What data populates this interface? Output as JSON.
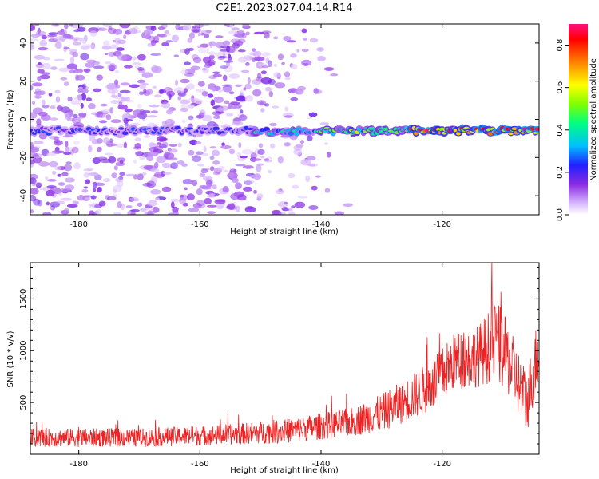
{
  "title": "C2E1.2023.027.04.14.R14",
  "chart_data": [
    {
      "type": "heatmap",
      "xlabel": "Height of straight line (km)",
      "ylabel": "Frequency (Hz)",
      "xlim": [
        -188,
        -104
      ],
      "ylim": [
        -50,
        50
      ],
      "xticks": [
        -180,
        -160,
        -140,
        -120
      ],
      "yticks": [
        -40,
        -20,
        0,
        20,
        40
      ],
      "colorbar": {
        "label": "Normalized spectral amplitude",
        "range": [
          0,
          0.9
        ],
        "ticks": [
          0.0,
          0.2,
          0.4,
          0.6,
          0.8
        ]
      },
      "ridge": {
        "frequency_hz": -6,
        "segments": [
          {
            "x_start": -188,
            "x_end": -151,
            "amplitude": 0.25
          },
          {
            "x_start": -151,
            "x_end": -140,
            "amplitude": 0.4
          },
          {
            "x_start": -140,
            "x_end": -125,
            "amplitude": 0.55
          },
          {
            "x_start": -125,
            "x_end": -104,
            "amplitude": 0.85
          }
        ]
      },
      "noise_region": {
        "x_start": -188,
        "x_end": -135,
        "amplitude": 0.1
      }
    },
    {
      "type": "line",
      "xlabel": "Height of straight line (km)",
      "ylabel": "SNR (10 * v/v)",
      "xlim": [
        -188,
        -104
      ],
      "ylim": [
        0,
        1850
      ],
      "xticks": [
        -180,
        -160,
        -140,
        -120
      ],
      "yticks": [
        500,
        1000,
        1500
      ],
      "color": "#ee2222",
      "envelope": [
        {
          "x": -188,
          "mean": 160,
          "amp": 90
        },
        {
          "x": -170,
          "mean": 160,
          "amp": 90
        },
        {
          "x": -155,
          "mean": 190,
          "amp": 100
        },
        {
          "x": -145,
          "mean": 230,
          "amp": 120
        },
        {
          "x": -135,
          "mean": 310,
          "amp": 140
        },
        {
          "x": -130,
          "mean": 400,
          "amp": 180
        },
        {
          "x": -125,
          "mean": 550,
          "amp": 220
        },
        {
          "x": -121,
          "mean": 700,
          "amp": 260
        },
        {
          "x": -118,
          "mean": 900,
          "amp": 280
        },
        {
          "x": -114,
          "mean": 950,
          "amp": 300
        },
        {
          "x": -111,
          "mean": 1100,
          "amp": 400
        },
        {
          "x": -109,
          "mean": 900,
          "amp": 350
        },
        {
          "x": -106,
          "mean": 500,
          "amp": 300
        },
        {
          "x": -104,
          "mean": 1050,
          "amp": 350
        }
      ]
    }
  ]
}
